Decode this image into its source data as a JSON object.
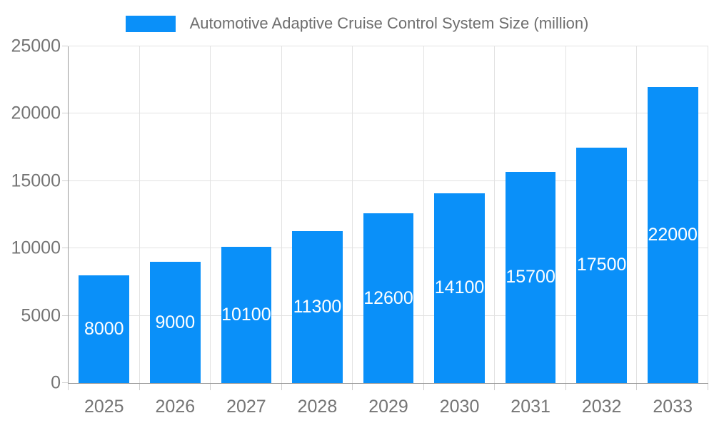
{
  "legend": {
    "label": "Automotive Adaptive Cruise Control System Size (million)"
  },
  "colors": {
    "bar": "#0A90F9",
    "grid": "#E2E2E2",
    "tick": "#CFCFCF",
    "axis_line": "#9B9B9B",
    "axis_label": "#757575",
    "legend_text": "#6E6E6E",
    "bar_label": "#FFFFFF",
    "background": "#FFFFFF"
  },
  "chart_data": {
    "type": "bar",
    "title": "Automotive Adaptive Cruise Control System Size (million)",
    "categories": [
      "2025",
      "2026",
      "2027",
      "2028",
      "2029",
      "2030",
      "2031",
      "2032",
      "2033"
    ],
    "values": [
      8000,
      9000,
      10100,
      11300,
      12600,
      14100,
      15700,
      17500,
      22000
    ],
    "bar_labels": [
      "8000",
      "9000",
      "10100",
      "11300",
      "12600",
      "14100",
      "15700",
      "17500",
      "22000"
    ],
    "xlabel": "",
    "ylabel": "",
    "ylim": [
      0,
      25000
    ],
    "y_ticks": [
      0,
      5000,
      10000,
      15000,
      20000,
      25000
    ],
    "y_tick_labels": [
      "0",
      "5000",
      "10000",
      "15000",
      "20000",
      "25000"
    ],
    "grid": true,
    "legend_position": "top-center",
    "bar_label_position": "inside-center",
    "bar_width_fraction": 0.71
  }
}
